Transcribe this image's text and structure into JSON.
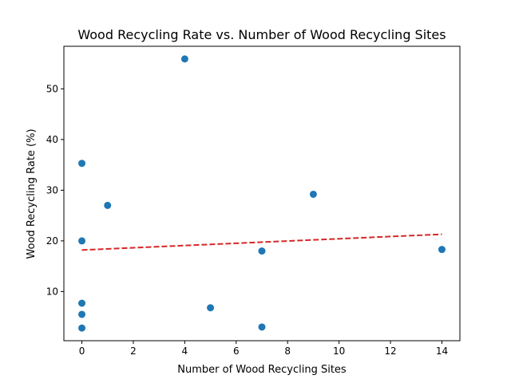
{
  "chart_data": {
    "type": "scatter",
    "title": "Wood Recycling Rate vs. Number of Wood Recycling Sites",
    "xlabel": "Number of Wood Recycling Sites",
    "ylabel": "Wood Recycling Rate (%)",
    "xlim": [
      -0.7,
      14.7
    ],
    "ylim": [
      0.3,
      58.4
    ],
    "xticks": [
      0,
      2,
      4,
      6,
      8,
      10,
      12,
      14
    ],
    "yticks": [
      10,
      20,
      30,
      40,
      50
    ],
    "grid": false,
    "legend": "none",
    "series": [
      {
        "marker": "circle",
        "color": "#1f77b4",
        "points": [
          {
            "x": 0,
            "y": 35.3
          },
          {
            "x": 0,
            "y": 20.0
          },
          {
            "x": 0,
            "y": 7.7
          },
          {
            "x": 0,
            "y": 5.5
          },
          {
            "x": 0,
            "y": 2.8
          },
          {
            "x": 1,
            "y": 27.0
          },
          {
            "x": 4,
            "y": 55.9
          },
          {
            "x": 5,
            "y": 6.8
          },
          {
            "x": 7,
            "y": 18.0
          },
          {
            "x": 7,
            "y": 3.0
          },
          {
            "x": 9,
            "y": 29.2
          },
          {
            "x": 14,
            "y": 18.3
          }
        ]
      }
    ],
    "trendline": {
      "style": "dashed",
      "color": "#d62728",
      "points": [
        {
          "x": 0,
          "y": 18.2
        },
        {
          "x": 14,
          "y": 21.3
        }
      ]
    }
  }
}
